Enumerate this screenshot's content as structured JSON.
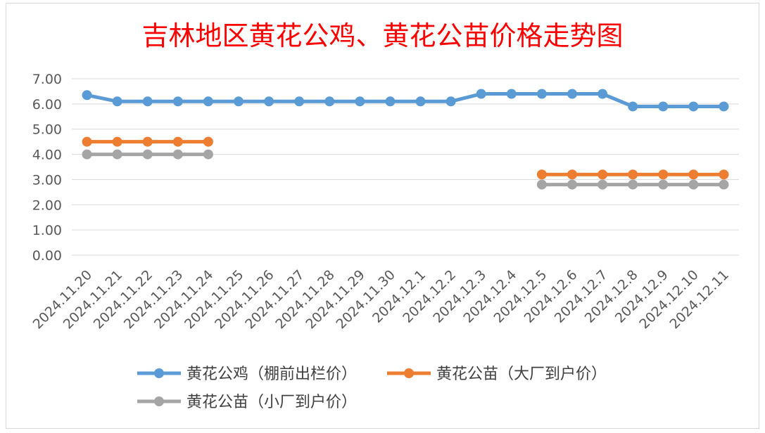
{
  "chart_data": {
    "type": "line",
    "title": "吉林地区黄花公鸡、黄花公苗价格走势图",
    "xlabel": "",
    "ylabel": "",
    "ylim": [
      0,
      7
    ],
    "yticks": [
      "0.00",
      "1.00",
      "2.00",
      "3.00",
      "4.00",
      "5.00",
      "6.00",
      "7.00"
    ],
    "grid": true,
    "legend_position": "bottom",
    "categories": [
      "2024.11.20",
      "2024.11.21",
      "2024.11.22",
      "2024.11.23",
      "2024.11.24",
      "2024.11.25",
      "2024.11.26",
      "2024.11.27",
      "2024.11.28",
      "2024.11.29",
      "2024.11.30",
      "2024.12.1",
      "2024.12.2",
      "2024.12.3",
      "2024.12.4",
      "2024.12.5",
      "2024.12.6",
      "2024.12.7",
      "2024.12.8",
      "2024.12.9",
      "2024.12.10",
      "2024.12.11"
    ],
    "series": [
      {
        "name": "黄花公鸡（棚前出栏价）",
        "color": "#5b9bd5",
        "values": [
          6.35,
          6.1,
          6.1,
          6.1,
          6.1,
          6.1,
          6.1,
          6.1,
          6.1,
          6.1,
          6.1,
          6.1,
          6.1,
          6.4,
          6.4,
          6.4,
          6.4,
          6.4,
          5.9,
          5.9,
          5.9,
          5.9
        ]
      },
      {
        "name": "黄花公苗（大厂到户价）",
        "color": "#ed7d31",
        "values": [
          4.5,
          4.5,
          4.5,
          4.5,
          4.5,
          null,
          null,
          null,
          null,
          null,
          null,
          null,
          null,
          null,
          null,
          3.2,
          3.2,
          3.2,
          3.2,
          3.2,
          3.2,
          3.2
        ]
      },
      {
        "name": "黄花公苗（小厂到户价）",
        "color": "#a5a5a5",
        "values": [
          4.0,
          4.0,
          4.0,
          4.0,
          4.0,
          null,
          null,
          null,
          null,
          null,
          null,
          null,
          null,
          null,
          null,
          2.8,
          2.8,
          2.8,
          2.8,
          2.8,
          2.8,
          2.8
        ]
      }
    ]
  }
}
